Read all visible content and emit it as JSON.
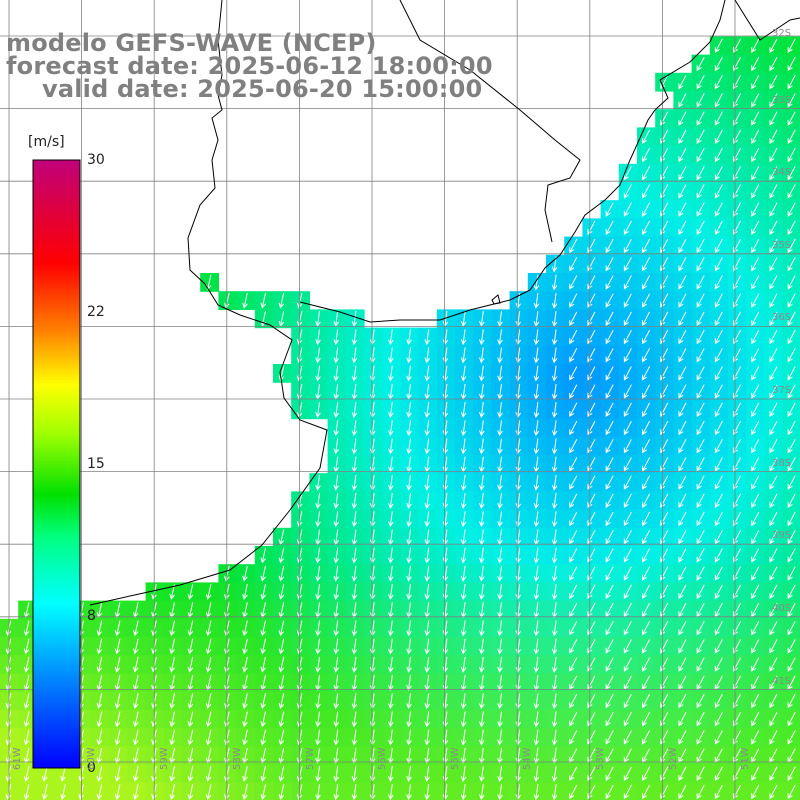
{
  "title": {
    "model": "modelo GEFS-WAVE (NCEP)",
    "forecast": "forecast date: 2025-06-12 18:00:00",
    "valid": "valid date: 2025-06-20 15:00:00"
  },
  "colorbar": {
    "unit": "[m/s]",
    "ticks": [
      "30",
      "22",
      "15",
      "8",
      "0"
    ],
    "tick_values": [
      30,
      22,
      15,
      8,
      0
    ],
    "range": [
      0,
      30
    ],
    "colors": [
      "#0000ff",
      "#0080ff",
      "#00ffff",
      "#00ff00",
      "#80ff00",
      "#ffff00",
      "#ff8000",
      "#ff0000",
      "#c00080"
    ]
  },
  "axes": {
    "lat_labels": [
      "32S",
      "33S",
      "34S",
      "35S",
      "36S",
      "37S",
      "38S",
      "39S",
      "40S",
      "41S"
    ],
    "lon_labels": [
      "61W",
      "60W",
      "59W",
      "58W",
      "57W",
      "56W",
      "55W",
      "54W",
      "53W",
      "52W",
      "51W"
    ]
  },
  "map": {
    "field": "wind speed",
    "ocean_color_range": [
      "#00a8ff",
      "#a0ff20"
    ],
    "arrow_color": "#ffffff",
    "land_color": "#ffffff",
    "coast_color": "#000000",
    "grid_color": "#808080"
  }
}
